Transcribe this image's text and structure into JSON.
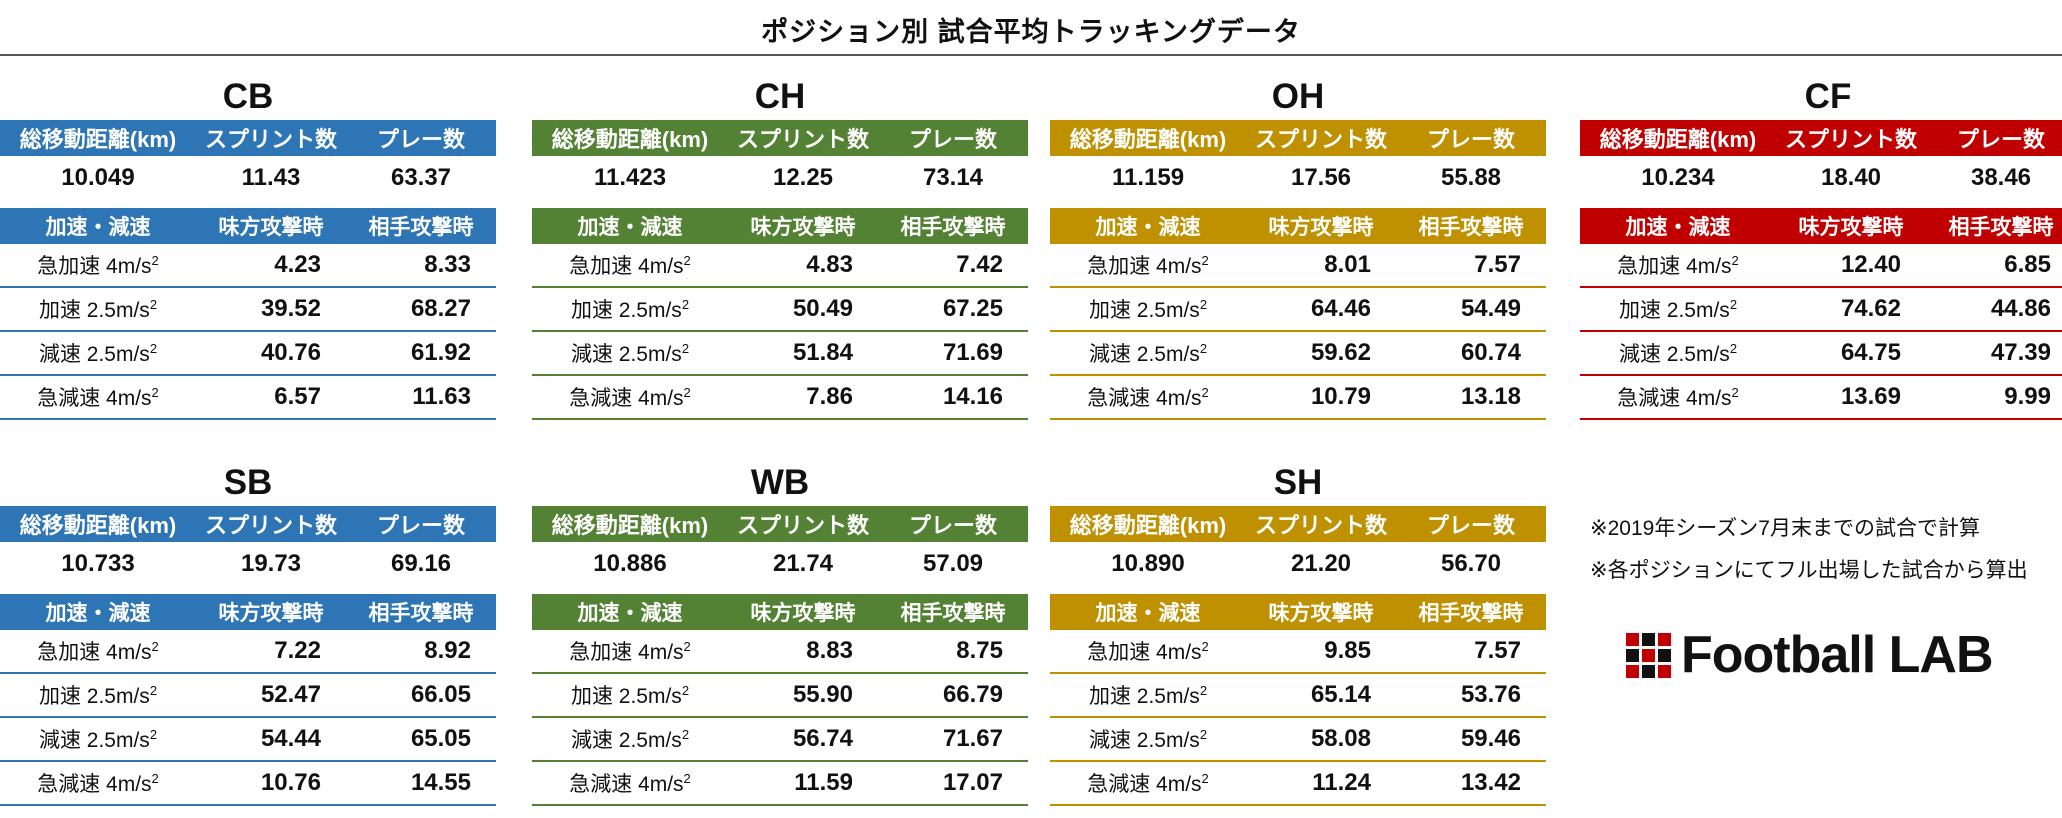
{
  "title": "ポジション別 試合平均トラッキングデータ",
  "summary_headers": [
    "総移動距離(km)",
    "スプリント数",
    "プレー数"
  ],
  "accel_headers": [
    "加速・減速",
    "味方攻撃時",
    "相手攻撃時"
  ],
  "row_labels": [
    {
      "pre": "急加速 4m/s",
      "sup": "2"
    },
    {
      "pre": "加速 2.5m/s",
      "sup": "2"
    },
    {
      "pre": "減速 2.5m/s",
      "sup": "2"
    },
    {
      "pre": "急減速 4m/s",
      "sup": "2"
    }
  ],
  "positions": [
    {
      "name": "CB",
      "color": "#2e75b6",
      "summary": [
        "10.049",
        "11.43",
        "63.37"
      ],
      "rows": [
        [
          "4.23",
          "8.33"
        ],
        [
          "39.52",
          "68.27"
        ],
        [
          "40.76",
          "61.92"
        ],
        [
          "6.57",
          "11.63"
        ]
      ]
    },
    {
      "name": "CH",
      "color": "#548235",
      "summary": [
        "11.423",
        "12.25",
        "73.14"
      ],
      "rows": [
        [
          "4.83",
          "7.42"
        ],
        [
          "50.49",
          "67.25"
        ],
        [
          "51.84",
          "71.69"
        ],
        [
          "7.86",
          "14.16"
        ]
      ]
    },
    {
      "name": "OH",
      "color": "#bf9000",
      "summary": [
        "11.159",
        "17.56",
        "55.88"
      ],
      "rows": [
        [
          "8.01",
          "7.57"
        ],
        [
          "64.46",
          "54.49"
        ],
        [
          "59.62",
          "60.74"
        ],
        [
          "10.79",
          "13.18"
        ]
      ]
    },
    {
      "name": "CF",
      "color": "#c00000",
      "summary": [
        "10.234",
        "18.40",
        "38.46"
      ],
      "rows": [
        [
          "12.40",
          "6.85"
        ],
        [
          "74.62",
          "44.86"
        ],
        [
          "64.75",
          "47.39"
        ],
        [
          "13.69",
          "9.99"
        ]
      ]
    },
    {
      "name": "SB",
      "color": "#2e75b6",
      "summary": [
        "10.733",
        "19.73",
        "69.16"
      ],
      "rows": [
        [
          "7.22",
          "8.92"
        ],
        [
          "52.47",
          "66.05"
        ],
        [
          "54.44",
          "65.05"
        ],
        [
          "10.76",
          "14.55"
        ]
      ]
    },
    {
      "name": "WB",
      "color": "#548235",
      "summary": [
        "10.886",
        "21.74",
        "57.09"
      ],
      "rows": [
        [
          "8.83",
          "8.75"
        ],
        [
          "55.90",
          "66.79"
        ],
        [
          "56.74",
          "71.67"
        ],
        [
          "11.59",
          "17.07"
        ]
      ]
    },
    {
      "name": "SH",
      "color": "#bf9000",
      "summary": [
        "10.890",
        "21.20",
        "56.70"
      ],
      "rows": [
        [
          "9.85",
          "7.57"
        ],
        [
          "65.14",
          "53.76"
        ],
        [
          "58.08",
          "59.46"
        ],
        [
          "11.24",
          "13.42"
        ]
      ]
    }
  ],
  "notes": [
    "※2019年シーズン7月末までの試合で計算",
    "※各ポジションにてフル出場した試合から算出"
  ],
  "logo": {
    "text": "Football LAB",
    "grid_colors": [
      "#c00000",
      "#111111",
      "#c00000",
      "#111111",
      "#c00000",
      "#111111",
      "#c00000",
      "#111111",
      "#c00000"
    ]
  }
}
